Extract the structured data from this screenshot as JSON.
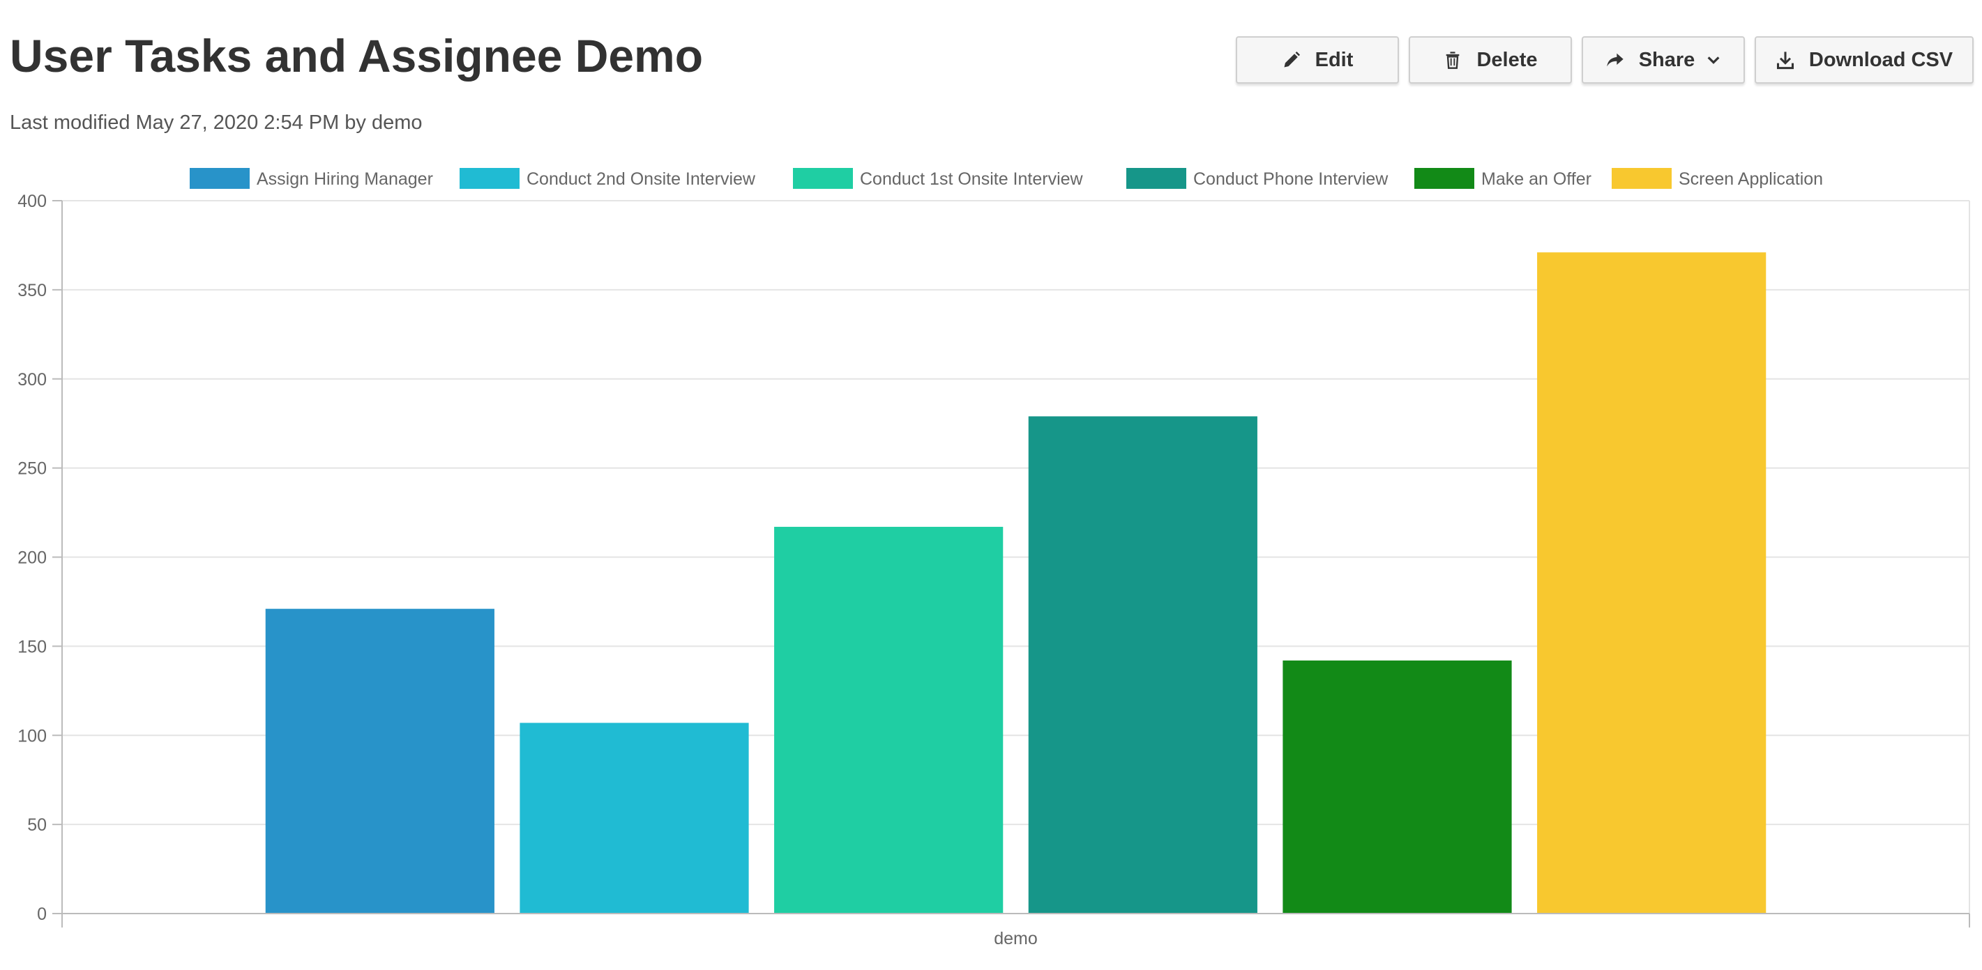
{
  "header": {
    "title": "User Tasks and Assignee Demo",
    "modified_label": "Last modified",
    "modified_date": "May 27, 2020 2:54 PM",
    "by_label": "by",
    "author": "demo"
  },
  "toolbar": {
    "edit_label": "Edit",
    "delete_label": "Delete",
    "share_label": "Share",
    "download_label": "Download CSV",
    "icons": [
      "pencil-icon",
      "trash-icon",
      "share-arrow-icon",
      "chevron-down-icon",
      "download-icon"
    ]
  },
  "chart_data": {
    "type": "bar",
    "title": "",
    "xlabel": "",
    "ylabel": "",
    "categories": [
      "demo"
    ],
    "ylim": [
      0,
      400
    ],
    "yticks": [
      0,
      50,
      100,
      150,
      200,
      250,
      300,
      350,
      400
    ],
    "grid": true,
    "legend_position": "top-center",
    "series": [
      {
        "name": "Assign Hiring Manager",
        "values": [
          171
        ],
        "color": "#2893c9"
      },
      {
        "name": "Conduct 2nd Onsite Interview",
        "values": [
          107
        ],
        "color": "#20bbd3"
      },
      {
        "name": "Conduct 1st Onsite Interview",
        "values": [
          217
        ],
        "color": "#1fcea3"
      },
      {
        "name": "Conduct Phone Interview",
        "values": [
          279
        ],
        "color": "#169689"
      },
      {
        "name": "Make an Offer",
        "values": [
          142
        ],
        "color": "#128a17"
      },
      {
        "name": "Screen Application",
        "values": [
          371
        ],
        "color": "#f8c82f"
      }
    ]
  }
}
